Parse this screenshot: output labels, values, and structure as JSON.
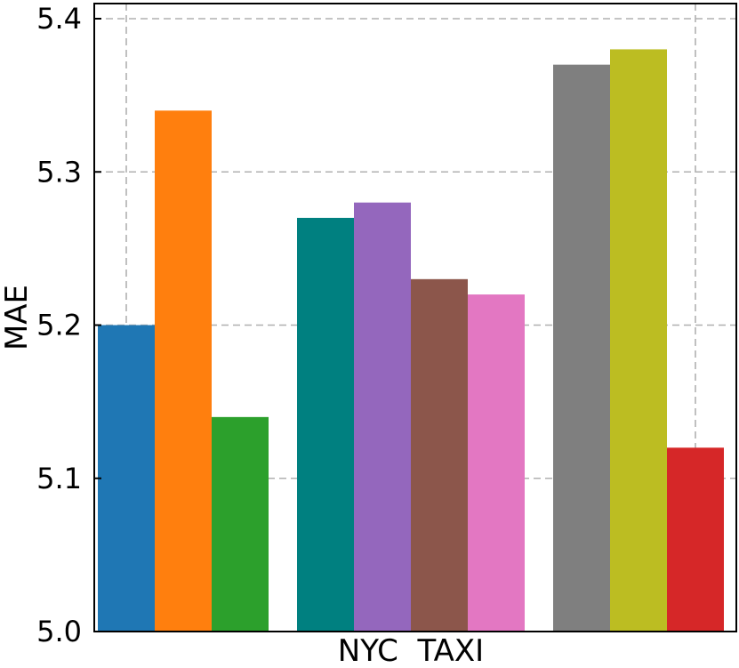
{
  "chart_data": {
    "type": "bar",
    "xlabel": "NYC  TAXI",
    "ylabel": "MAE",
    "ylim": [
      5.0,
      5.4
    ],
    "yticks": [
      "5.0",
      "5.1",
      "5.2",
      "5.3",
      "5.4"
    ],
    "grid": true,
    "groups": [
      {
        "bars": [
          {
            "value": 5.2,
            "color": "#1f77b4"
          },
          {
            "value": 5.34,
            "color": "#ff7f0e"
          },
          {
            "value": 5.14,
            "color": "#2ca02c"
          }
        ]
      },
      {
        "bars": [
          {
            "value": 5.27,
            "color": "#008080"
          },
          {
            "value": 5.28,
            "color": "#9467bd"
          },
          {
            "value": 5.23,
            "color": "#8c564b"
          },
          {
            "value": 5.22,
            "color": "#e377c2"
          }
        ]
      },
      {
        "bars": [
          {
            "value": 5.37,
            "color": "#7f7f7f"
          },
          {
            "value": 5.38,
            "color": "#bcbd22"
          },
          {
            "value": 5.12,
            "color": "#d62728"
          }
        ]
      }
    ]
  }
}
